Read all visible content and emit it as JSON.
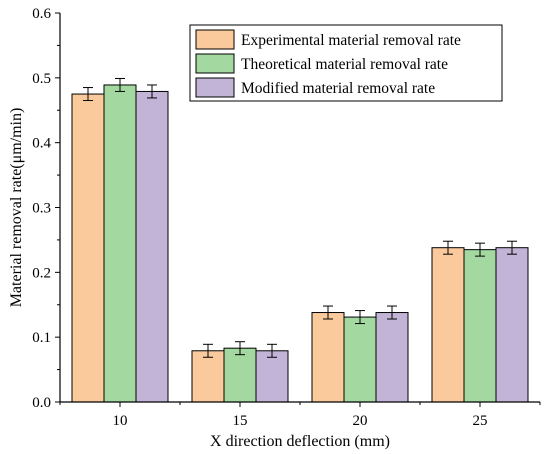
{
  "chart_data": {
    "type": "bar",
    "title": "",
    "xlabel": "X direction deflection (mm)",
    "ylabel": "Material removal rate(μm/min)",
    "categories": [
      "10",
      "15",
      "20",
      "25"
    ],
    "ylim": [
      0,
      0.6
    ],
    "yticks": [
      "0.0",
      "0.1",
      "0.2",
      "0.3",
      "0.4",
      "0.5",
      "0.6"
    ],
    "legend_position": "top-right",
    "grid": false,
    "error_bars": true,
    "series": [
      {
        "name": "Experimental material removal rate",
        "color": "#FACA9D",
        "values": [
          0.475,
          0.079,
          0.138,
          0.238
        ],
        "errors": [
          0.01,
          0.01,
          0.01,
          0.01
        ]
      },
      {
        "name": "Theoretical material removal rate",
        "color": "#A3D9A0",
        "values": [
          0.489,
          0.083,
          0.131,
          0.235
        ],
        "errors": [
          0.01,
          0.01,
          0.01,
          0.01
        ]
      },
      {
        "name": "Modified material removal rate",
        "color": "#C2B4D6",
        "values": [
          0.479,
          0.079,
          0.138,
          0.238
        ],
        "errors": [
          0.01,
          0.01,
          0.01,
          0.01
        ]
      }
    ]
  }
}
